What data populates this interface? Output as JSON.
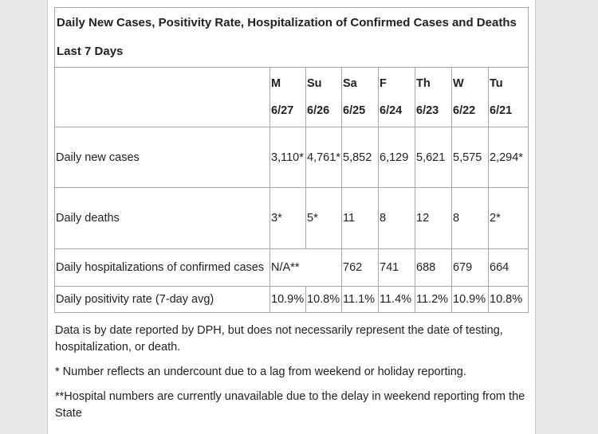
{
  "table": {
    "title": "Daily New Cases, Positivity Rate, Hospitalization of Confirmed Cases and Deaths Last 7 Days",
    "days": [
      {
        "label": "M",
        "date": "6/27"
      },
      {
        "label": "Su",
        "date": "6/26"
      },
      {
        "label": "Sa",
        "date": "6/25"
      },
      {
        "label": "F",
        "date": "6/24"
      },
      {
        "label": "Th",
        "date": "6/23"
      },
      {
        "label": "W",
        "date": "6/22"
      },
      {
        "label": "Tu",
        "date": "6/21"
      }
    ],
    "rows": [
      {
        "label": "Daily new cases",
        "values": [
          "3,110*",
          "4,761*",
          "5,852",
          "6,129",
          "5,621",
          "5,575",
          "2,294*"
        ]
      },
      {
        "label": "Daily deaths",
        "values": [
          "3*",
          "5*",
          "11",
          "8",
          "12",
          "8",
          "2*"
        ]
      },
      {
        "label": "Daily hospitalizations of confirmed cases",
        "merged": "N/A**",
        "values": [
          "762",
          "741",
          "688",
          "679",
          "664"
        ]
      },
      {
        "label": "Daily positivity rate (7-day avg)",
        "values": [
          "10.9%",
          "10.8%",
          "11.1%",
          "11.4%",
          "11.2%",
          "10.9%",
          "10.8%"
        ]
      }
    ]
  },
  "notes": [
    "Data is by date reported by DPH, but does not necessarily represent the date of testing, hospitalization, or death.",
    "* Number reflects an undercount due to a lag from weekend or holiday reporting.",
    "**Hospital numbers are currently unavailable due to the delay in weekend reporting from the State"
  ]
}
